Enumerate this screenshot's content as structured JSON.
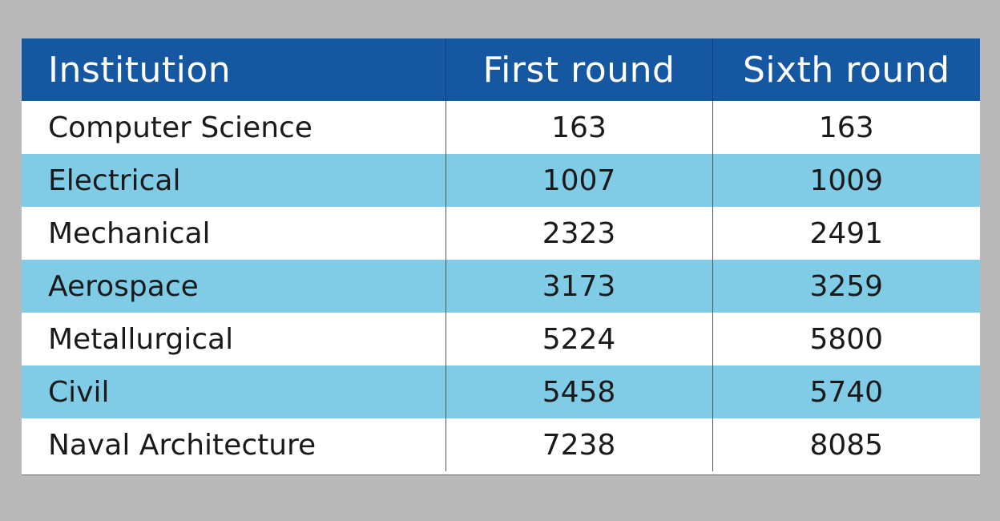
{
  "chart_data": {
    "type": "table",
    "columns": [
      "Institution",
      "First round",
      "Sixth round"
    ],
    "rows": [
      [
        "Computer Science",
        "163",
        "163"
      ],
      [
        "Electrical",
        "1007",
        "1009"
      ],
      [
        "Mechanical",
        "2323",
        "2491"
      ],
      [
        "Aerospace",
        "3173",
        "3259"
      ],
      [
        "Metallurgical",
        "5224",
        "5800"
      ],
      [
        "Civil",
        "5458",
        "5740"
      ],
      [
        "Naval Architecture",
        "7238",
        "8085"
      ]
    ],
    "colors": {
      "header": "#1557a0",
      "alt_row": "#80cbe6",
      "plain_row": "#ffffff",
      "background": "#b9b9b9"
    }
  }
}
